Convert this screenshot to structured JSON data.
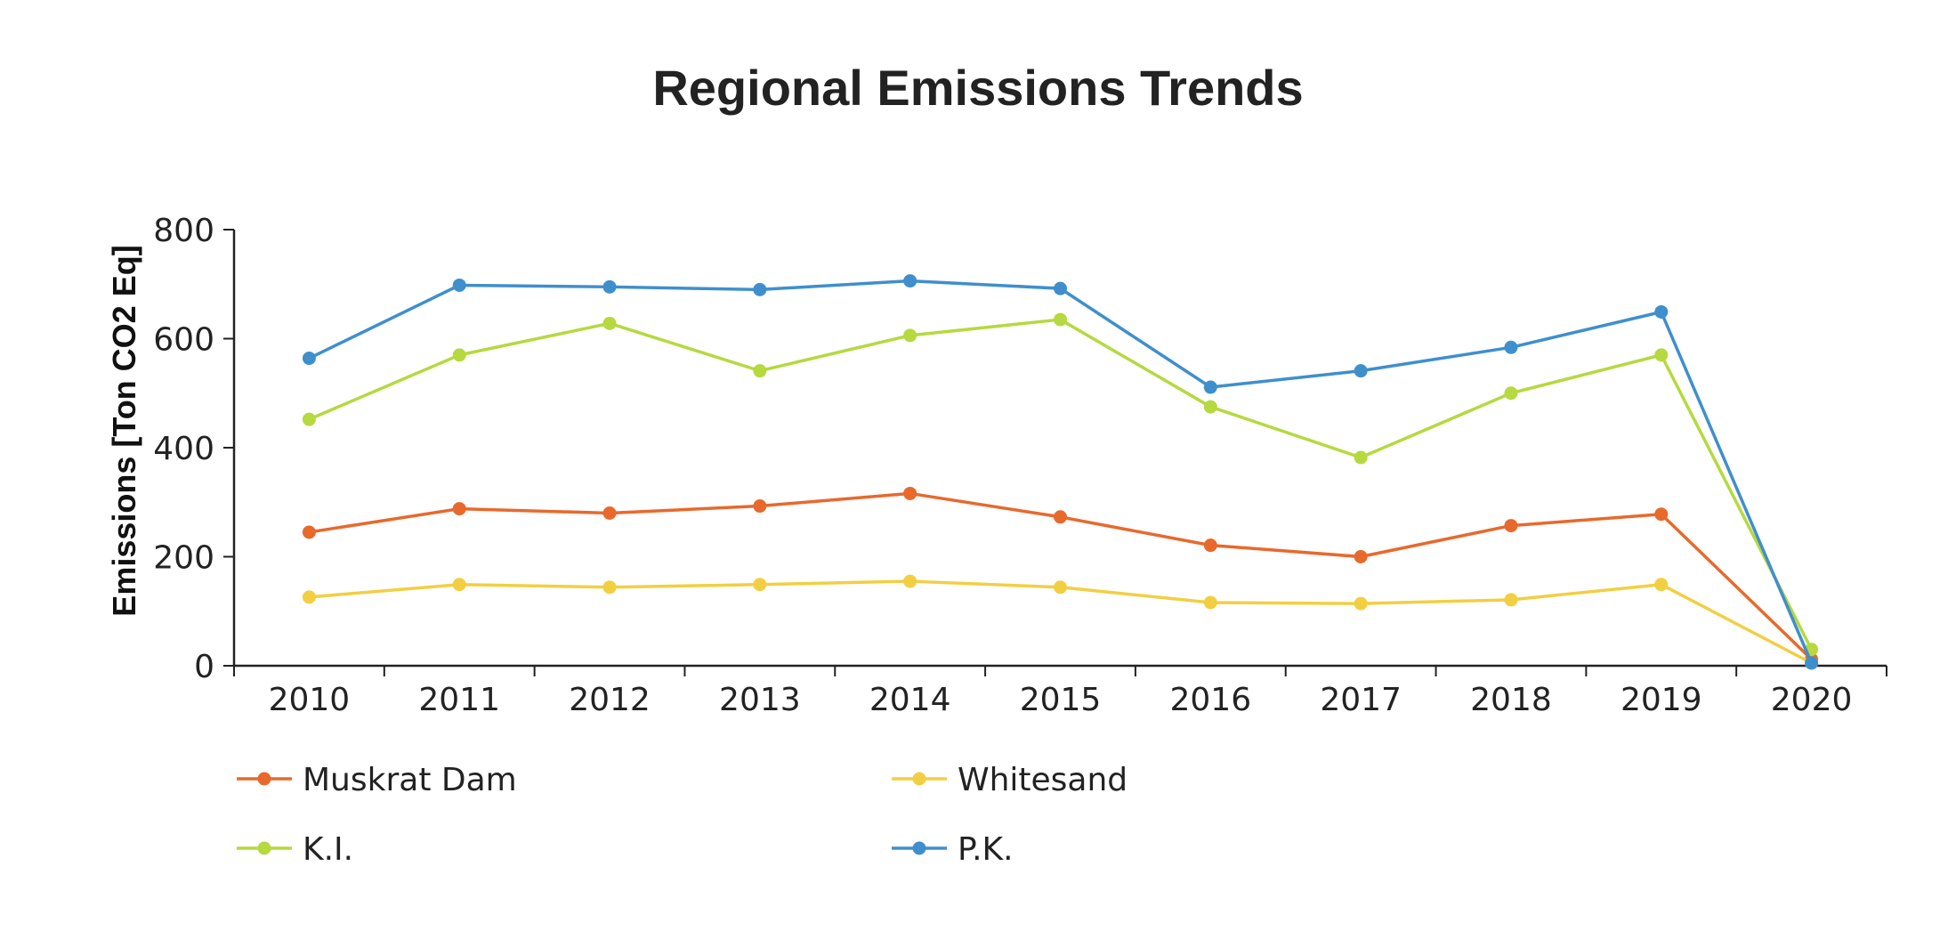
{
  "chart_data": {
    "type": "line",
    "title": "Regional Emissions Trends",
    "xlabel": "",
    "ylabel": "Emissions [Ton CO2 Eq]",
    "ylim": [
      0,
      800
    ],
    "yticks": [
      0,
      200,
      400,
      600,
      800
    ],
    "grid": false,
    "legend_position": "bottom-left",
    "categories": [
      "2010",
      "2011",
      "2012",
      "2013",
      "2014",
      "2015",
      "2016",
      "2017",
      "2018",
      "2019",
      "2020"
    ],
    "series": [
      {
        "name": "Muskrat Dam",
        "color": "#e8692c",
        "values": [
          245,
          288,
          280,
          293,
          316,
          273,
          221,
          200,
          257,
          278,
          12
        ]
      },
      {
        "name": "Whitesand",
        "color": "#f2cf42",
        "values": [
          126,
          149,
          144,
          149,
          155,
          144,
          116,
          114,
          121,
          149,
          5
        ]
      },
      {
        "name": "K.I.",
        "color": "#b5d93f",
        "values": [
          452,
          570,
          628,
          541,
          606,
          635,
          475,
          382,
          500,
          570,
          30
        ]
      },
      {
        "name": "P.K.",
        "color": "#3f8fcd",
        "values": [
          564,
          698,
          695,
          690,
          706,
          692,
          511,
          541,
          584,
          649,
          5
        ]
      }
    ]
  }
}
